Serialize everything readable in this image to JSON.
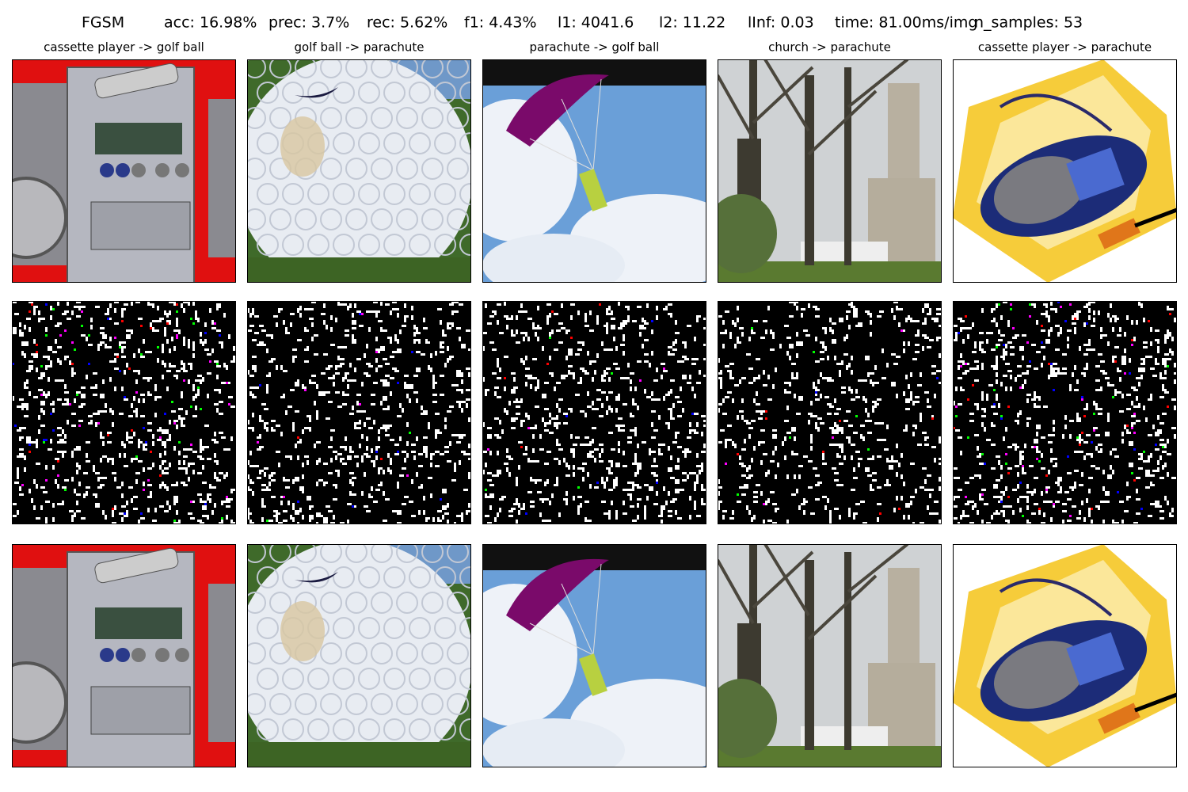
{
  "header": {
    "items": [
      "FGSM",
      "acc: 16.98%",
      "prec: 3.7%",
      "rec: 5.62%",
      "f1: 4.43%",
      "l1: 4041.6",
      "l2: 11.22",
      "lInf: 0.03",
      "time: 81.00ms/img",
      "n_samples: 53"
    ]
  },
  "columns": [
    {
      "title": "cassette player -> golf ball"
    },
    {
      "title": "golf ball -> parachute"
    },
    {
      "title": "parachute -> golf ball"
    },
    {
      "title": "church -> parachute"
    },
    {
      "title": "cassette player -> parachute"
    }
  ]
}
